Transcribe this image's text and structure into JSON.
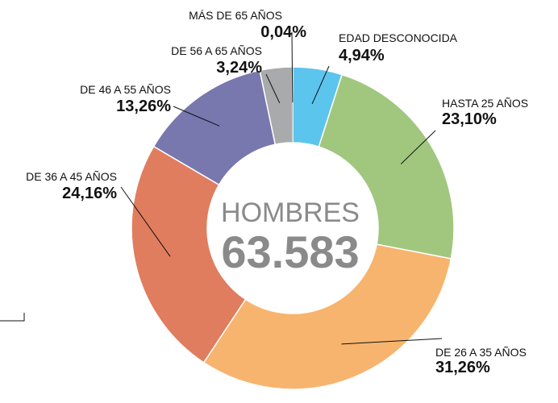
{
  "chart_data": {
    "type": "donut",
    "center_title": "HOMBRES",
    "center_value": "63.583",
    "categories": [
      "EDAD DESCONOCIDA",
      "HASTA 25 AÑOS",
      "DE 26 A 35 AÑOS",
      "DE 36 A 45 AÑOS",
      "DE 46 A 55 AÑOS",
      "DE 56 A 65 AÑOS",
      "MÁS DE 65 AÑOS"
    ],
    "values": [
      4.94,
      23.1,
      31.26,
      24.16,
      13.26,
      3.24,
      0.04
    ],
    "value_labels": [
      "4,94%",
      "23,10%",
      "31,26%",
      "24,16%",
      "13,26%",
      "3,24%",
      "0,04%"
    ],
    "colors": [
      "#5cc5ee",
      "#a1c77f",
      "#f7b46e",
      "#e07d5f",
      "#7877ae",
      "#a9aaac",
      "#4a4a4a"
    ]
  }
}
